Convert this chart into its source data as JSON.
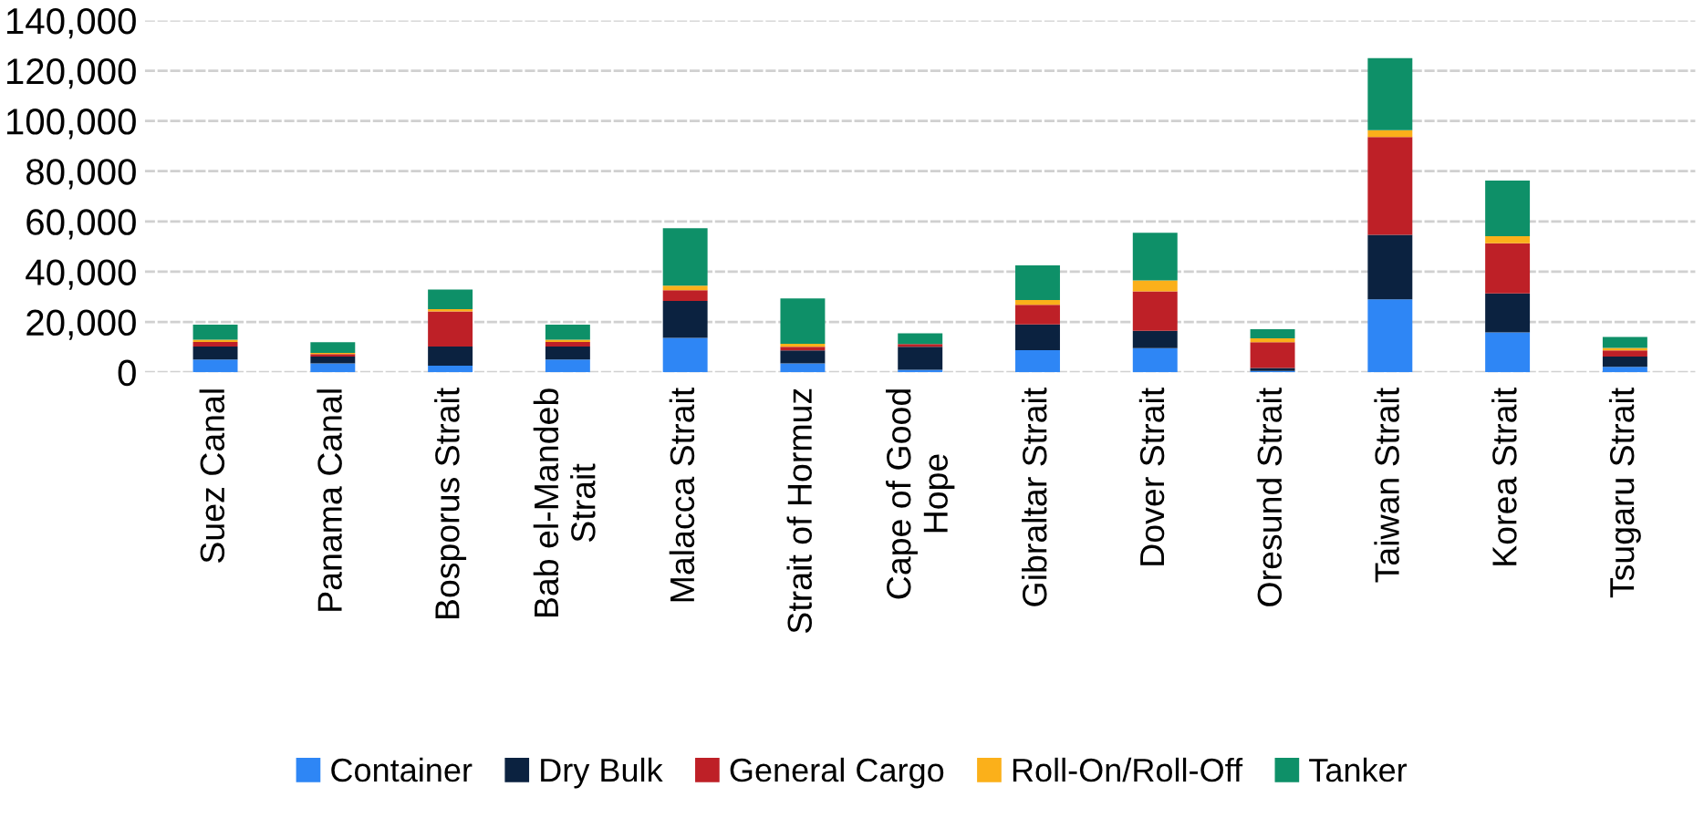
{
  "chart_data": {
    "type": "bar",
    "stacked": true,
    "categories": [
      "Suez Canal",
      "Panama Canal",
      "Bosporus Strait",
      "Bab el-Mandeb Strait",
      "Malacca Strait",
      "Strait of Hormuz",
      "Cape of Good Hope",
      "Gibraltar Strait",
      "Dover Strait",
      "Oresund Strait",
      "Taiwan Strait",
      "Korea Strait",
      "Tsugaru Strait"
    ],
    "series": [
      {
        "name": "Container",
        "color": "#2e86f5",
        "values": [
          5000,
          3500,
          2600,
          5000,
          13700,
          3500,
          1000,
          8800,
          9600,
          500,
          29000,
          15800,
          2100
        ]
      },
      {
        "name": "Dry Bulk",
        "color": "#0b2240",
        "values": [
          5200,
          2700,
          7600,
          5200,
          14700,
          5200,
          9100,
          10200,
          6900,
          1200,
          25700,
          15600,
          4100
        ]
      },
      {
        "name": "General Cargo",
        "color": "#be2027",
        "values": [
          1800,
          1000,
          14000,
          1800,
          4200,
          1400,
          1100,
          7800,
          15700,
          10200,
          38900,
          19900,
          2500
        ]
      },
      {
        "name": "Roll-On/Roll-Off",
        "color": "#fbb01a",
        "values": [
          900,
          500,
          900,
          900,
          1800,
          1200,
          null,
          1900,
          4300,
          1600,
          2700,
          2800,
          1000
        ]
      },
      {
        "name": "Tanker",
        "color": "#0e9068",
        "values": [
          6000,
          4200,
          7800,
          6000,
          22900,
          18100,
          4300,
          13800,
          19000,
          3600,
          28700,
          22200,
          4300
        ]
      }
    ],
    "ylim": [
      0,
      140000
    ],
    "yticks": [
      {
        "value": 0,
        "label": "0"
      },
      {
        "value": 20000,
        "label": "20,000"
      },
      {
        "value": 40000,
        "label": "40,000"
      },
      {
        "value": 60000,
        "label": "60,000"
      },
      {
        "value": 80000,
        "label": "80,000"
      },
      {
        "value": 100000,
        "label": "100,000"
      },
      {
        "value": 120000,
        "label": "120,000"
      },
      {
        "value": 140000,
        "label": "140,000"
      }
    ],
    "grid": "y",
    "legend": "bottom"
  }
}
